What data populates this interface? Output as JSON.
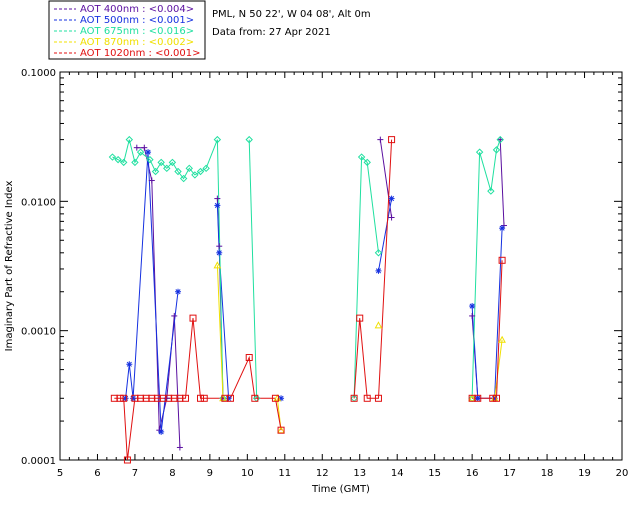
{
  "header": {
    "station": "PML, N 50 22', W 04 08', Alt 0m",
    "date_line": "Data from: 27 Apr 2021"
  },
  "chart_data": {
    "type": "line",
    "xlabel": "Time (GMT)",
    "ylabel": "Imaginary Part of Refractive Index",
    "xlim": [
      5,
      20
    ],
    "ylim": [
      0.0001,
      0.1
    ],
    "y_scale": "log",
    "x_ticks": [
      "5",
      "6",
      "7",
      "8",
      "9",
      "10",
      "11",
      "12",
      "13",
      "14",
      "15",
      "16",
      "17",
      "18",
      "19",
      "20"
    ],
    "y_ticks": [
      {
        "value": 0.0001,
        "label": "0.0001"
      },
      {
        "value": 0.001,
        "label": "0.0010"
      },
      {
        "value": 0.01,
        "label": "0.0100"
      },
      {
        "value": 0.1,
        "label": "0.1000"
      }
    ],
    "legend_position": "top-left, outside plot",
    "series": [
      {
        "name": "AOT  400nm : <0.004>",
        "color": "#5a0fa0",
        "marker": "plus",
        "points": [
          [
            7.05,
            0.026
          ],
          [
            7.25,
            0.026
          ],
          [
            7.45,
            0.0145
          ],
          [
            7.65,
            0.00017
          ],
          [
            7.85,
            0.0003
          ],
          [
            8.05,
            0.0013
          ],
          [
            8.2,
            0.000125
          ],
          [
            9.2,
            0.0105
          ],
          [
            9.25,
            0.0045
          ],
          [
            9.35,
            0.0003
          ],
          [
            13.55,
            0.03
          ],
          [
            13.85,
            0.0075
          ],
          [
            16.0,
            0.0013
          ],
          [
            16.15,
            0.0003
          ],
          [
            16.75,
            0.03
          ],
          [
            16.85,
            0.0065
          ]
        ]
      },
      {
        "name": "AOT  500nm : <0.001>",
        "color": "#1530e0",
        "marker": "star",
        "points": [
          [
            6.75,
            0.0003
          ],
          [
            6.85,
            0.00055
          ],
          [
            6.95,
            0.0003
          ],
          [
            7.35,
            0.024
          ],
          [
            7.7,
            0.000165
          ],
          [
            8.15,
            0.002
          ],
          [
            9.2,
            0.0093
          ],
          [
            9.25,
            0.004
          ],
          [
            9.5,
            0.0003
          ],
          [
            10.9,
            0.0003
          ],
          [
            13.5,
            0.0029
          ],
          [
            13.85,
            0.0105
          ],
          [
            16.0,
            0.00155
          ],
          [
            16.15,
            0.0003
          ],
          [
            16.6,
            0.0003
          ],
          [
            16.8,
            0.0062
          ]
        ]
      },
      {
        "name": "AOT  675nm : <0.016>",
        "color": "#20e0a0",
        "marker": "diamond",
        "points": [
          [
            6.4,
            0.022
          ],
          [
            6.55,
            0.021
          ],
          [
            6.7,
            0.02
          ],
          [
            6.85,
            0.03
          ],
          [
            7.0,
            0.02
          ],
          [
            7.15,
            0.024
          ],
          [
            7.4,
            0.021
          ],
          [
            7.55,
            0.017
          ],
          [
            7.7,
            0.02
          ],
          [
            7.85,
            0.018
          ],
          [
            8.0,
            0.02
          ],
          [
            8.15,
            0.017
          ],
          [
            8.3,
            0.015
          ],
          [
            8.45,
            0.018
          ],
          [
            8.6,
            0.016
          ],
          [
            8.75,
            0.017
          ],
          [
            8.9,
            0.018
          ],
          [
            9.2,
            0.03
          ],
          [
            9.35,
            0.0003
          ],
          [
            10.05,
            0.03
          ],
          [
            10.25,
            0.0003
          ],
          [
            12.85,
            0.0003
          ],
          [
            13.05,
            0.022
          ],
          [
            13.2,
            0.02
          ],
          [
            13.5,
            0.004
          ],
          [
            16.0,
            0.0003
          ],
          [
            16.2,
            0.024
          ],
          [
            16.5,
            0.012
          ],
          [
            16.65,
            0.025
          ],
          [
            16.75,
            0.03
          ]
        ]
      },
      {
        "name": "AOT  870nm : <0.002>",
        "color": "#f0e000",
        "marker": "triangle",
        "points": [
          [
            9.2,
            0.0032
          ],
          [
            9.35,
            0.0003
          ],
          [
            10.8,
            0.0003
          ],
          [
            10.9,
            0.00017
          ],
          [
            13.5,
            0.0011
          ],
          [
            16.0,
            0.0003
          ],
          [
            16.6,
            0.0003
          ],
          [
            16.8,
            0.00085
          ]
        ]
      },
      {
        "name": "AOT 1020nm : <0.001>",
        "color": "#e01010",
        "marker": "square",
        "points": [
          [
            6.45,
            0.0003
          ],
          [
            6.6,
            0.0003
          ],
          [
            6.7,
            0.0003
          ],
          [
            6.8,
            0.0001
          ],
          [
            7.0,
            0.0003
          ],
          [
            7.15,
            0.0003
          ],
          [
            7.3,
            0.0003
          ],
          [
            7.45,
            0.0003
          ],
          [
            7.6,
            0.0003
          ],
          [
            7.75,
            0.0003
          ],
          [
            7.9,
            0.0003
          ],
          [
            8.05,
            0.0003
          ],
          [
            8.2,
            0.0003
          ],
          [
            8.35,
            0.0003
          ],
          [
            8.55,
            0.00125
          ],
          [
            8.75,
            0.0003
          ],
          [
            8.85,
            0.0003
          ],
          [
            9.4,
            0.0003
          ],
          [
            9.55,
            0.0003
          ],
          [
            10.05,
            0.00062
          ],
          [
            10.2,
            0.0003
          ],
          [
            10.75,
            0.0003
          ],
          [
            10.9,
            0.00017
          ],
          [
            12.85,
            0.0003
          ],
          [
            13.0,
            0.00125
          ],
          [
            13.2,
            0.0003
          ],
          [
            13.5,
            0.0003
          ],
          [
            13.85,
            0.03
          ],
          [
            16.0,
            0.0003
          ],
          [
            16.15,
            0.0003
          ],
          [
            16.55,
            0.0003
          ],
          [
            16.65,
            0.0003
          ],
          [
            16.8,
            0.0035
          ]
        ]
      }
    ]
  }
}
